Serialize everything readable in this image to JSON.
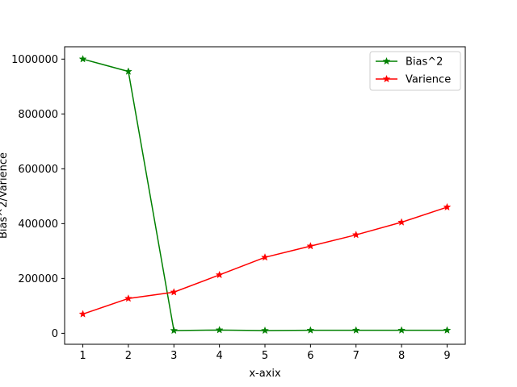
{
  "chart_data": {
    "type": "line",
    "title": "",
    "xlabel": "x-axix",
    "ylabel": "Bias^2/Varience",
    "x": [
      1,
      2,
      3,
      4,
      5,
      6,
      7,
      8,
      9
    ],
    "xticks": [
      1,
      2,
      3,
      4,
      5,
      6,
      7,
      8,
      9
    ],
    "yticks": [
      0,
      200000,
      400000,
      600000,
      800000,
      1000000
    ],
    "xlim": [
      0.6,
      9.4
    ],
    "ylim": [
      -40000,
      1045000
    ],
    "grid": false,
    "legend_position": "top-right",
    "series": [
      {
        "name": "Bias^2",
        "color": "#008000",
        "marker": "star",
        "values": [
          1000000,
          955000,
          10000,
          12000,
          10000,
          11000,
          11000,
          11000,
          11000
        ]
      },
      {
        "name": "Varience",
        "color": "#ff0000",
        "marker": "star",
        "values": [
          70000,
          127000,
          150000,
          213000,
          277000,
          318000,
          359000,
          405000,
          460000
        ]
      }
    ]
  }
}
